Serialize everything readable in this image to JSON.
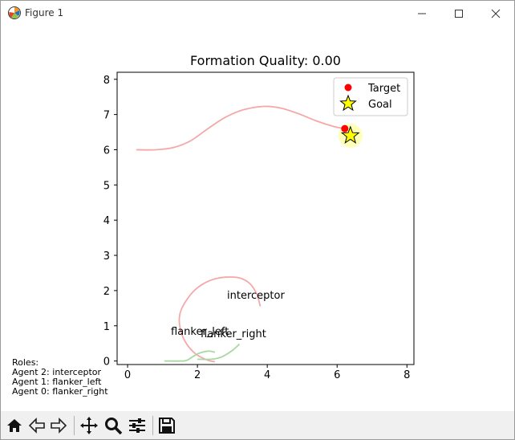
{
  "window": {
    "title": "Figure 1",
    "controls": {
      "minimize": "minimize",
      "maximize": "maximize",
      "close": "close"
    }
  },
  "figure": {
    "title": "Formation Quality: 0.00",
    "annotations": [
      "interceptor",
      "flanker_left",
      "flanker_right"
    ],
    "roles_text": [
      "Roles:",
      "Agent 2: interceptor",
      "Agent 1: flanker_left",
      "Agent 0: flanker_right"
    ]
  },
  "chart_data": {
    "type": "line",
    "title": "Formation Quality: 0.00",
    "xlabel": "",
    "ylabel": "",
    "xlim": [
      -0.3,
      8.2
    ],
    "ylim": [
      -0.1,
      8.2
    ],
    "xticks": [
      0,
      2,
      4,
      6,
      8
    ],
    "yticks": [
      0,
      1,
      2,
      3,
      4,
      5,
      6,
      7,
      8
    ],
    "grid": false,
    "legend": {
      "placement": "top-right",
      "entries": [
        "Target",
        "Goal"
      ]
    },
    "series": [
      {
        "name": "Target",
        "color": "#ff0000",
        "marker": "point",
        "x": [
          6.22
        ],
        "y": [
          6.6
        ]
      },
      {
        "name": "Goal",
        "color": "#ffff00",
        "marker": "star",
        "x": [
          6.38
        ],
        "y": [
          6.4
        ]
      },
      {
        "color": "#f4a8a8",
        "x": [
          0.25,
          0.8,
          1.3,
          1.8,
          2.3,
          2.8,
          3.3,
          3.9,
          4.4,
          4.9,
          5.4,
          5.9,
          6.2
        ],
        "y": [
          6.0,
          6.0,
          6.06,
          6.25,
          6.6,
          6.92,
          7.13,
          7.23,
          7.18,
          7.02,
          6.82,
          6.66,
          6.6
        ]
      },
      {
        "color": "#f4a8a8",
        "x": [
          3.8,
          3.7,
          3.5,
          3.2,
          2.8,
          2.4,
          2.0,
          1.7,
          1.5,
          1.5,
          1.65,
          1.95,
          2.3,
          2.5
        ],
        "y": [
          1.55,
          1.9,
          2.2,
          2.36,
          2.38,
          2.3,
          2.08,
          1.75,
          1.35,
          0.95,
          0.55,
          0.2,
          0.02,
          -0.02
        ]
      },
      {
        "color": "#a8d8a0",
        "x": [
          1.05,
          1.5,
          1.7,
          2.0,
          2.3,
          2.5
        ],
        "y": [
          0.0,
          0.0,
          0.02,
          0.2,
          0.28,
          0.25
        ]
      },
      {
        "color": "#a8d8a0",
        "x": [
          2.0,
          2.4,
          2.7,
          3.0,
          3.2
        ],
        "y": [
          0.05,
          0.05,
          0.12,
          0.3,
          0.48
        ]
      }
    ]
  },
  "toolbar": {
    "buttons": [
      "home",
      "back",
      "forward",
      "pan",
      "zoom",
      "configure-subplots",
      "save"
    ]
  }
}
